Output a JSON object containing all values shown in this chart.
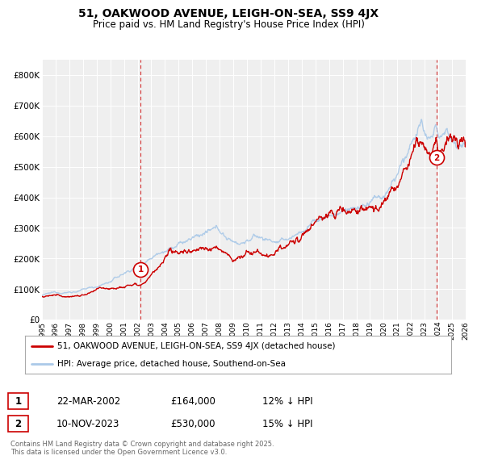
{
  "title": "51, OAKWOOD AVENUE, LEIGH-ON-SEA, SS9 4JX",
  "subtitle": "Price paid vs. HM Land Registry's House Price Index (HPI)",
  "legend_line1": "51, OAKWOOD AVENUE, LEIGH-ON-SEA, SS9 4JX (detached house)",
  "legend_line2": "HPI: Average price, detached house, Southend-on-Sea",
  "transaction1_date": "22-MAR-2002",
  "transaction1_price": 164000,
  "transaction1_label": "12% ↓ HPI",
  "transaction2_date": "10-NOV-2023",
  "transaction2_price": 530000,
  "transaction2_label": "15% ↓ HPI",
  "footer": "Contains HM Land Registry data © Crown copyright and database right 2025.\nThis data is licensed under the Open Government Licence v3.0.",
  "hpi_color": "#aac9e8",
  "price_color": "#cc0000",
  "vline_color": "#cc0000",
  "ylim": [
    0,
    850000
  ],
  "yticks": [
    0,
    100000,
    200000,
    300000,
    400000,
    500000,
    600000,
    700000,
    800000
  ],
  "x_start_year": 1995,
  "x_end_year": 2026
}
